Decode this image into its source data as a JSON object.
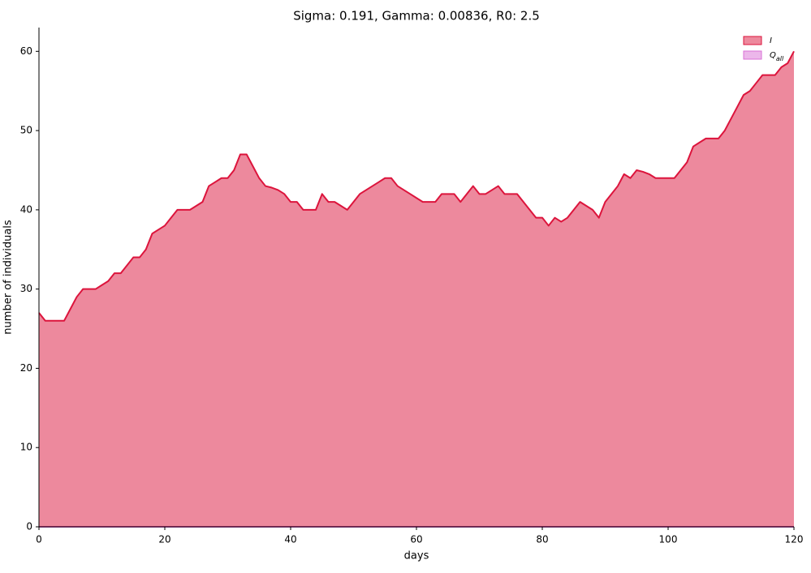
{
  "chart_data": {
    "type": "area",
    "title": "Sigma: 0.191, Gamma: 0.00836, R0: 2.5",
    "xlabel": "days",
    "ylabel": "number of individuals",
    "x": [
      0,
      1,
      2,
      3,
      4,
      5,
      6,
      7,
      8,
      9,
      10,
      11,
      12,
      13,
      14,
      15,
      16,
      17,
      18,
      19,
      20,
      21,
      22,
      23,
      24,
      25,
      26,
      27,
      28,
      29,
      30,
      31,
      32,
      33,
      34,
      35,
      36,
      37,
      38,
      39,
      40,
      41,
      42,
      43,
      44,
      45,
      46,
      47,
      48,
      49,
      50,
      51,
      52,
      53,
      54,
      55,
      56,
      57,
      58,
      59,
      60,
      61,
      62,
      63,
      64,
      65,
      66,
      67,
      68,
      69,
      70,
      71,
      72,
      73,
      74,
      75,
      76,
      77,
      78,
      79,
      80,
      81,
      82,
      83,
      84,
      85,
      86,
      87,
      88,
      89,
      90,
      91,
      92,
      93,
      94,
      95,
      96,
      97,
      98,
      99,
      100,
      101,
      102,
      103,
      104,
      105,
      106,
      107,
      108,
      109,
      110,
      111,
      112,
      113,
      114,
      115,
      116,
      117,
      118,
      119,
      120
    ],
    "series": [
      {
        "name": "I",
        "color": "#dc143c",
        "values": [
          27,
          26,
          26,
          26,
          26,
          27.5,
          29,
          30,
          30,
          30,
          30.5,
          31,
          32,
          32,
          33,
          34,
          34,
          35,
          37,
          37.5,
          38,
          39,
          40,
          40,
          40,
          40.5,
          41,
          43,
          43.5,
          44,
          44,
          45,
          47,
          47,
          45.5,
          44,
          43,
          42.8,
          42.5,
          42,
          41,
          41,
          40,
          40,
          40,
          42,
          41,
          41,
          40.5,
          40,
          41,
          42,
          42.5,
          43,
          43.5,
          44,
          44,
          43,
          42.5,
          42,
          41.5,
          41,
          41,
          41,
          42,
          42,
          42,
          41,
          42,
          43,
          42,
          42,
          42.5,
          43,
          42,
          42,
          42,
          41,
          40,
          39,
          39,
          38,
          39,
          38.5,
          39,
          40,
          41,
          40.5,
          40,
          39,
          41,
          42,
          43,
          44.5,
          44,
          45,
          44.8,
          44.5,
          44,
          44,
          44,
          44,
          45,
          46,
          48,
          48.5,
          49,
          49,
          49,
          50,
          51.5,
          53,
          54.5,
          55,
          56,
          57,
          57,
          57,
          58,
          58.5,
          60
        ]
      },
      {
        "name": "Q_all",
        "color": "#da70d6",
        "values": [
          0,
          0,
          0,
          0,
          0,
          0,
          0,
          0,
          0,
          0,
          0,
          0,
          0,
          0,
          0,
          0,
          0,
          0,
          0,
          0,
          0,
          0,
          0,
          0,
          0,
          0,
          0,
          0,
          0,
          0,
          0,
          0,
          0,
          0,
          0,
          0,
          0,
          0,
          0,
          0,
          0,
          0,
          0,
          0,
          0,
          0,
          0,
          0,
          0,
          0,
          0,
          0,
          0,
          0,
          0,
          0,
          0,
          0,
          0,
          0,
          0,
          0,
          0,
          0,
          0,
          0,
          0,
          0,
          0,
          0,
          0,
          0,
          0,
          0,
          0,
          0,
          0,
          0,
          0,
          0,
          0,
          0,
          0,
          0,
          0,
          0,
          0,
          0,
          0,
          0,
          0,
          0,
          0,
          0,
          0,
          0,
          0,
          0,
          0,
          0,
          0,
          0,
          0,
          0,
          0,
          0,
          0,
          0,
          0,
          0,
          0,
          0,
          0,
          0,
          0,
          0,
          0,
          0,
          0,
          0,
          0
        ]
      }
    ],
    "xlim": [
      0,
      120
    ],
    "ylim": [
      0,
      63
    ],
    "xticks": [
      0,
      20,
      40,
      60,
      80,
      100,
      120
    ],
    "yticks": [
      0,
      10,
      20,
      30,
      40,
      50,
      60
    ],
    "legend": "upper right"
  }
}
